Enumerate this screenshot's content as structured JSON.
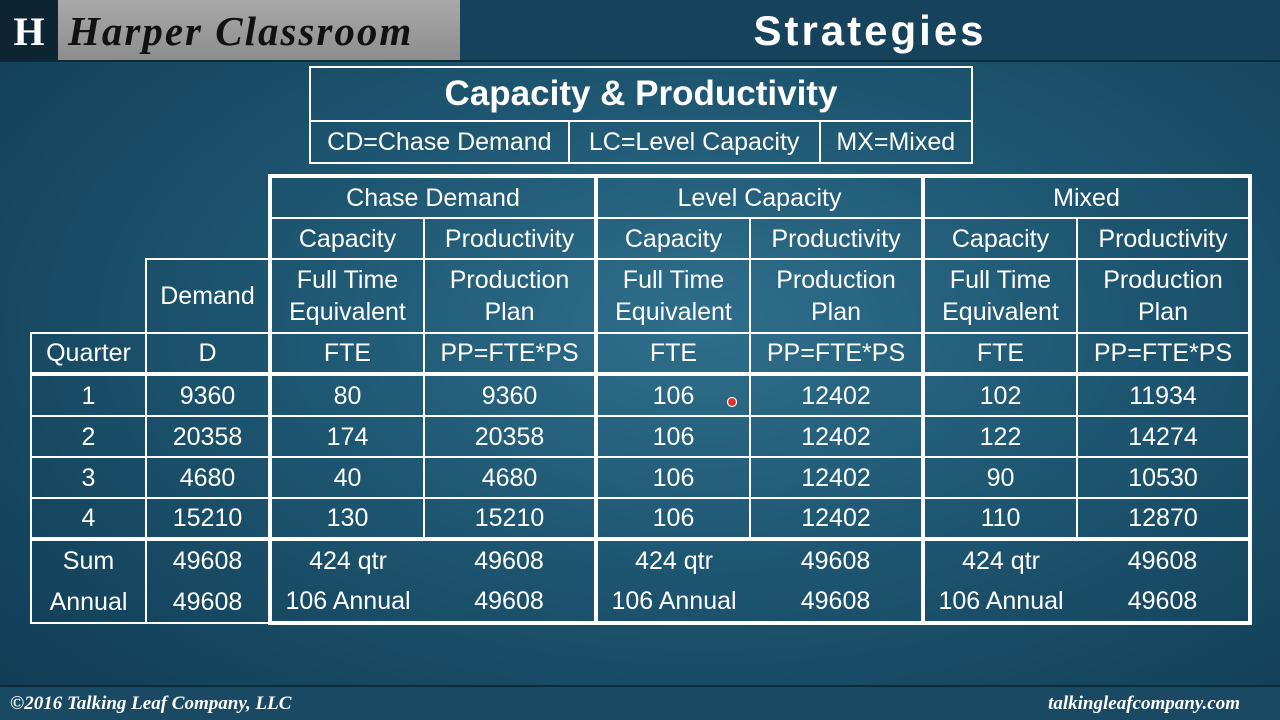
{
  "header": {
    "logo_letter": "H",
    "brand": "Harper Classroom",
    "title": "Strategies"
  },
  "legend": {
    "title": "Capacity & Productivity",
    "items": [
      "CD=Chase Demand",
      "LC=Level Capacity",
      "MX=Mixed"
    ]
  },
  "table": {
    "strategy_headers": [
      "Chase Demand",
      "Level Capacity",
      "Mixed"
    ],
    "sub_headers": [
      "Capacity",
      "Productivity"
    ],
    "demand_label": "Demand",
    "desc_capacity": [
      "Full Time",
      "Equivalent"
    ],
    "desc_productivity": [
      "Production",
      "Plan"
    ],
    "code_row": [
      "Quarter",
      "D",
      "FTE",
      "PP=FTE*PS",
      "FTE",
      "PP=FTE*PS",
      "FTE",
      "PP=FTE*PS"
    ],
    "rows": [
      [
        "1",
        "9360",
        "80",
        "9360",
        "106",
        "12402",
        "102",
        "11934"
      ],
      [
        "2",
        "20358",
        "174",
        "20358",
        "106",
        "12402",
        "122",
        "14274"
      ],
      [
        "3",
        "4680",
        "40",
        "4680",
        "106",
        "12402",
        "90",
        "10530"
      ],
      [
        "4",
        "15210",
        "130",
        "15210",
        "106",
        "12402",
        "110",
        "12870"
      ]
    ],
    "summary": [
      [
        "Sum",
        "49608",
        "424 qtr",
        "49608",
        "424 qtr",
        "49608",
        "424 qtr",
        "49608"
      ],
      [
        "Annual",
        "49608",
        "106 Annual",
        "49608",
        "106 Annual",
        "49608",
        "106 Annual",
        "49608"
      ]
    ]
  },
  "footer": {
    "left": "©2016 Talking Leaf Company, LLC",
    "right": "talkingleafcompany.com"
  },
  "colors": {
    "background": "#1d5570",
    "header_bar": "#16435b",
    "brand_box": "#9a9a9a",
    "cursor": "#e0302a"
  }
}
